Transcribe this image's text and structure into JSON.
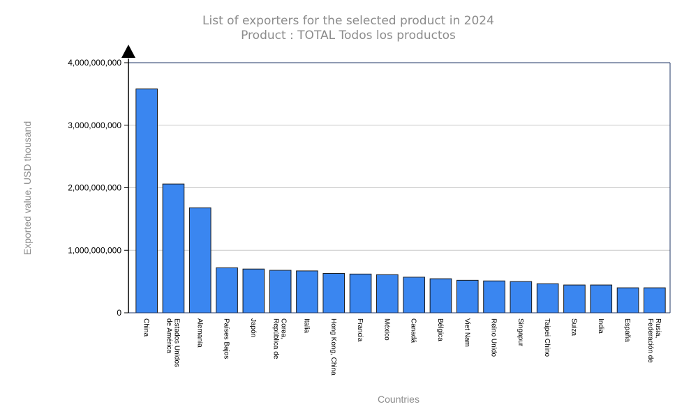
{
  "chart_data": {
    "type": "bar",
    "title": "List of exporters for the selected product in 2024",
    "subtitle": "Product : TOTAL Todos los productos",
    "xlabel": "Countries",
    "ylabel": "Exported value, USD thousand",
    "ylim": [
      0,
      4000000000
    ],
    "yticks": [
      {
        "value": 0,
        "label": "0"
      },
      {
        "value": 1000000000,
        "label": "1,000,000,000"
      },
      {
        "value": 2000000000,
        "label": "2,000,000,000"
      },
      {
        "value": 3000000000,
        "label": "3,000,000,000"
      },
      {
        "value": 4000000000,
        "label": "4,000,000,000"
      }
    ],
    "grid": true,
    "bar_color": "#3a86f0",
    "categories": [
      [
        "China"
      ],
      [
        "Estados Unidos",
        "de América"
      ],
      [
        "Alemania"
      ],
      [
        "Países Bajos"
      ],
      [
        "Japón"
      ],
      [
        "Corea,",
        "República de"
      ],
      [
        "Italia"
      ],
      [
        "Hong Kong, China"
      ],
      [
        "Francia"
      ],
      [
        "México"
      ],
      [
        "Canadá"
      ],
      [
        "Bélgica"
      ],
      [
        "Viet Nam"
      ],
      [
        "Reino Unido"
      ],
      [
        "Singapur"
      ],
      [
        "Taipei Chino"
      ],
      [
        "Suiza"
      ],
      [
        "India"
      ],
      [
        "España"
      ],
      [
        "Rusia,",
        "Federación de"
      ]
    ],
    "values": [
      3580000000,
      2060000000,
      1680000000,
      720000000,
      700000000,
      680000000,
      670000000,
      630000000,
      620000000,
      610000000,
      570000000,
      545000000,
      520000000,
      510000000,
      500000000,
      465000000,
      445000000,
      445000000,
      400000000,
      400000000
    ]
  }
}
